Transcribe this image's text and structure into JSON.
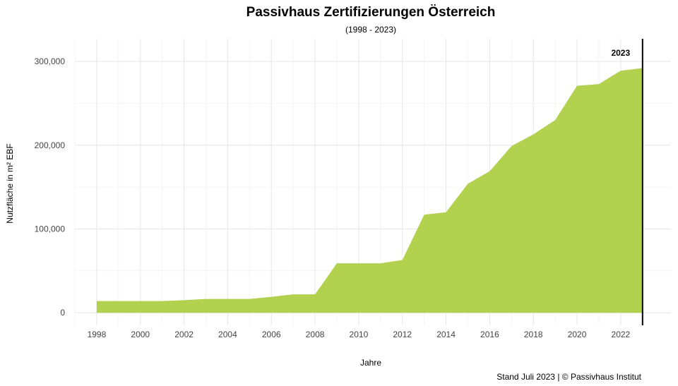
{
  "chart_data": {
    "type": "area",
    "title": "Passivhaus Zertifizierungen Österreich",
    "subtitle": "(1998 - 2023)",
    "xlabel": "Jahre",
    "ylabel": "Nutzfläche in m² EBF",
    "caption": "Stand Juli 2023 | © Passivhaus Institut",
    "marker": {
      "x": 2023,
      "label": "2023"
    },
    "xlim": [
      1997,
      2024.3
    ],
    "ylim": [
      -15000,
      327000
    ],
    "x_ticks": [
      1998,
      2000,
      2002,
      2004,
      2006,
      2008,
      2010,
      2012,
      2014,
      2016,
      2018,
      2020,
      2022
    ],
    "x_tick_labels": [
      "1998",
      "2000",
      "2002",
      "2004",
      "2006",
      "2008",
      "2010",
      "2012",
      "2014",
      "2016",
      "2018",
      "2020",
      "2022"
    ],
    "y_ticks": [
      0,
      100000,
      200000,
      300000
    ],
    "y_tick_labels": [
      "0",
      "100,000",
      "200,000",
      "300,000"
    ],
    "grid": true,
    "fill_color": "#b2d14f",
    "x": [
      1998,
      1999,
      2000,
      2001,
      2002,
      2003,
      2004,
      2005,
      2006,
      2007,
      2008,
      2009,
      2010,
      2011,
      2012,
      2013,
      2014,
      2015,
      2016,
      2017,
      2018,
      2019,
      2020,
      2021,
      2022,
      2023
    ],
    "values": [
      14000,
      14000,
      14000,
      14000,
      15000,
      16500,
      16500,
      16500,
      19000,
      22000,
      22000,
      59000,
      59000,
      59000,
      63000,
      117000,
      120000,
      154000,
      169000,
      199000,
      213000,
      230000,
      271000,
      273000,
      289000,
      292000
    ]
  }
}
